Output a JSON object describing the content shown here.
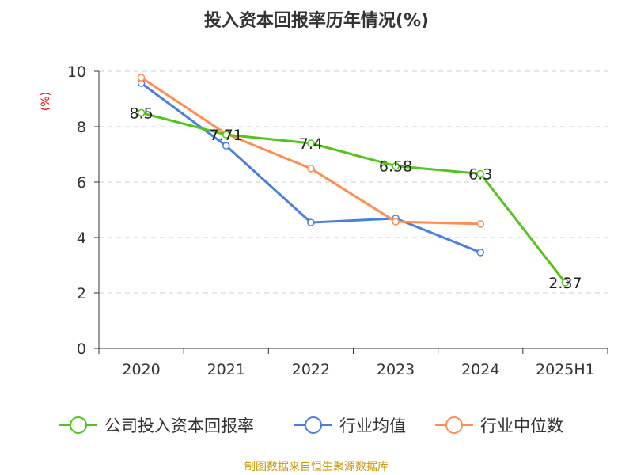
{
  "chart_data": {
    "type": "line",
    "title": "投入资本回报率历年情况(%)",
    "ylabel": "(%)",
    "categories": [
      "2020",
      "2021",
      "2022",
      "2023",
      "2024",
      "2025H1"
    ],
    "ylim": [
      0,
      10
    ],
    "yticks": [
      0,
      2,
      4,
      6,
      8,
      10
    ],
    "grid": true,
    "legend_position": "bottom",
    "series": [
      {
        "name": "公司投入资本回报率",
        "color": "#52c41a",
        "values": [
          8.5,
          7.71,
          7.4,
          6.58,
          6.3,
          2.37
        ],
        "labels": [
          "8.5",
          "7.71",
          "7.4",
          "6.58",
          "6.3",
          "2.37"
        ]
      },
      {
        "name": "行业均值",
        "color": "#4a7fe0",
        "values": [
          9.57,
          7.31,
          4.54,
          4.69,
          3.46,
          null
        ]
      },
      {
        "name": "行业中位数",
        "color": "#ff8c50",
        "values": [
          9.77,
          7.74,
          6.49,
          4.57,
          4.49,
          null
        ]
      }
    ]
  },
  "source": "制图数据来自恒生聚源数据库"
}
